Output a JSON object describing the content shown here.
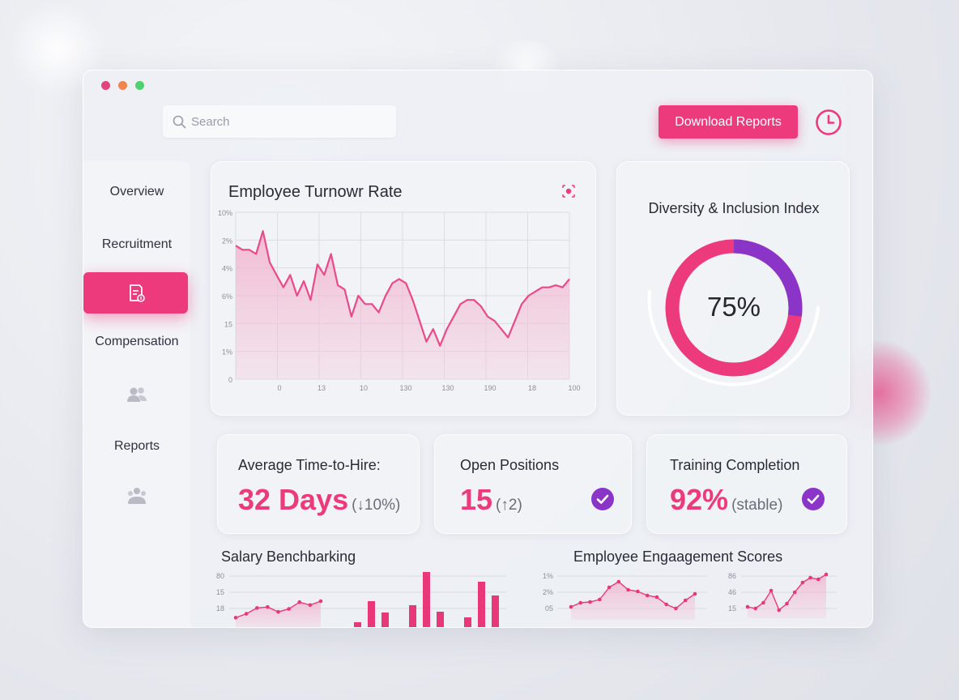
{
  "search": {
    "placeholder": "Search"
  },
  "header": {
    "download_label": "Download Reports"
  },
  "sidebar": {
    "items": [
      {
        "label": "Overview"
      },
      {
        "label": "Recruitment"
      },
      {
        "label": "Compensation"
      },
      {
        "label": "Reports"
      }
    ]
  },
  "turnover": {
    "title": "Employee Turnowr Rate",
    "chart_data": {
      "type": "area",
      "title": "Employee Turnowr Rate",
      "y_tick_labels": [
        "10%",
        "2%",
        "4%",
        "6%",
        "15",
        "1%",
        "0"
      ],
      "x_tick_labels": [
        "0",
        "13",
        "10",
        "130",
        "130",
        "190",
        "18",
        "100"
      ],
      "values": [
        64,
        62,
        62,
        60,
        71,
        56,
        50,
        44,
        50,
        40,
        47,
        38,
        55,
        50,
        60,
        45,
        43,
        30,
        40,
        36,
        36,
        32,
        40,
        46,
        48,
        46,
        38,
        28,
        18,
        24,
        16,
        24,
        30,
        36,
        38,
        38,
        35,
        30,
        28,
        24,
        20,
        28,
        36,
        40,
        42,
        44,
        44,
        45,
        44,
        48
      ],
      "grid": true,
      "color": "#e94a8b"
    }
  },
  "diversity": {
    "title": "Diversity & Inclusion Index",
    "value_label": "75%",
    "chart_data": {
      "type": "pie",
      "value": 75,
      "colors": [
        "#ec3a7c",
        "#8a35c8"
      ]
    }
  },
  "kpis": [
    {
      "label": "Average Time-to-Hire:",
      "value": "32 Days",
      "delta": "(↓10%)"
    },
    {
      "label": "Open Positions",
      "value": "15",
      "delta": "(↑2)"
    },
    {
      "label": "Training Completion",
      "value": "92%",
      "delta": "(stable)"
    }
  ],
  "salary": {
    "title": "Salary Benchbarking",
    "y_tick_labels": [
      "80",
      "15",
      "18"
    ],
    "line_values": [
      8,
      12,
      18,
      19,
      14,
      17,
      24,
      21,
      25
    ],
    "bar_values": [
      8,
      34,
      20,
      0,
      29,
      70,
      21,
      0,
      14,
      58,
      41
    ]
  },
  "engagement": {
    "title": "Employee Engaagement Scores",
    "left_y_tick_labels": [
      "1%",
      "2%",
      "05"
    ],
    "right_y_tick_labels": [
      "86",
      "46",
      "15"
    ],
    "left_values": [
      12,
      17,
      18,
      21,
      36,
      43,
      33,
      31,
      26,
      24,
      15,
      10,
      20,
      28
    ],
    "right_values": [
      10,
      8,
      15,
      30,
      6,
      14,
      28,
      40,
      46,
      44,
      50
    ]
  },
  "colors": {
    "accent": "#ec3a7c",
    "purple": "#8a35c8"
  }
}
